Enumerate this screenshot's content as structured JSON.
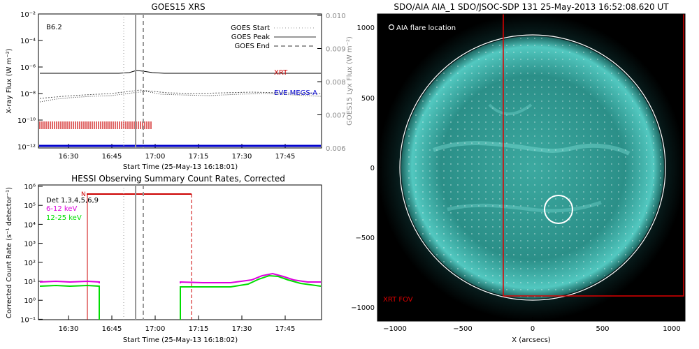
{
  "chart_data": [
    {
      "type": "line",
      "title": "GOES15 XRS",
      "xlabel": "Start Time (25-May-13 16:18:01)",
      "ylabel": "X-ray Flux (W m⁻²)",
      "ylabel_right": "GOES15 Lyx Flux (W m⁻²)",
      "yscale": "log",
      "x_ticks": [
        "16:30",
        "16:45",
        "17:00",
        "17:15",
        "17:30",
        "17:45"
      ],
      "y_ticks": [
        "10⁻²",
        "10⁻⁴",
        "10⁻⁶",
        "10⁻⁸",
        "10⁻¹⁰",
        "10⁻¹²"
      ],
      "y_ticks_right": [
        "0.010",
        "0.009",
        "0.008",
        "0.007",
        "0.006"
      ],
      "ylim_right": [
        0.006,
        0.01
      ],
      "annotation": "B6.2",
      "legend": [
        "GOES Start",
        "GOES Peak",
        "GOES End"
      ],
      "legend_position": "top-right",
      "series": [
        {
          "name": "XRT",
          "color": "#cc0000"
        },
        {
          "name": "EVE MEGS-A",
          "color": "#0000cc"
        }
      ],
      "markers": {
        "goes_start": "16:47",
        "goes_peak": "16:51",
        "goes_end": "16:55"
      },
      "level_series": {
        "x": [
          "16:18",
          "16:40",
          "16:45",
          "16:48",
          "16:50",
          "16:52",
          "16:56",
          "17:05",
          "17:30",
          "17:52"
        ],
        "log10_flux": [
          -6.9,
          -6.9,
          -6.85,
          -6.75,
          -6.65,
          -6.7,
          -6.85,
          -6.9,
          -6.9,
          -6.9
        ]
      }
    },
    {
      "type": "line",
      "title": "HESSI Observing Summary Count Rates, Corrected",
      "xlabel": "Start Time (25-May-13 16:18:02)",
      "ylabel": "Corrected Count Rate (s⁻¹ detector⁻¹)",
      "yscale": "log",
      "x_ticks": [
        "16:30",
        "16:45",
        "17:00",
        "17:15",
        "17:30",
        "17:45"
      ],
      "y_ticks": [
        "10⁶",
        "10⁵",
        "10⁴",
        "10³",
        "10²",
        "10¹",
        "10⁰",
        "10⁻¹"
      ],
      "legend_position": "top-left",
      "detectors_label": "Det 1,3,4,5,6,9",
      "night_label": "N",
      "series": [
        {
          "name": "6-12 keV",
          "color": "#dd00dd",
          "x": [
            "16:18",
            "16:37",
            "16:37",
            "17:11",
            "17:11",
            "17:30",
            "17:35",
            "17:40",
            "17:45",
            "17:52"
          ],
          "log10_rate": [
            1.0,
            1.0,
            null,
            null,
            0.9,
            0.9,
            1.1,
            1.3,
            1.0,
            0.9
          ]
        },
        {
          "name": "12-25 keV",
          "color": "#00dd00",
          "x": [
            "16:18",
            "16:37",
            "16:37",
            "17:11",
            "17:11",
            "17:30",
            "17:35",
            "17:40",
            "17:45",
            "17:52"
          ],
          "log10_rate": [
            0.75,
            0.75,
            -1.0,
            -1.0,
            0.75,
            0.75,
            1.0,
            1.35,
            0.9,
            0.7
          ]
        }
      ]
    },
    {
      "type": "image",
      "title": "SDO/AIA AIA_1 SDO/JSOC-SDP 131 25-May-2013 16:52:08.620 UT",
      "xlabel": "X (arcsecs)",
      "x_ticks": [
        "−1000",
        "−500",
        "0",
        "500",
        "1000"
      ],
      "y_ticks": [
        "1000",
        "500",
        "0",
        "−500",
        "−1000"
      ],
      "xlim": [
        -1100,
        1100
      ],
      "ylim": [
        -1100,
        1100
      ],
      "flare_label": "AIA flare location",
      "flare_location_arcsec": [
        210,
        -340
      ],
      "fov_label": "XRT FOV",
      "fov_arcsec": {
        "x": [
          -195,
          1100
        ],
        "y": [
          -900,
          1100
        ]
      }
    }
  ]
}
